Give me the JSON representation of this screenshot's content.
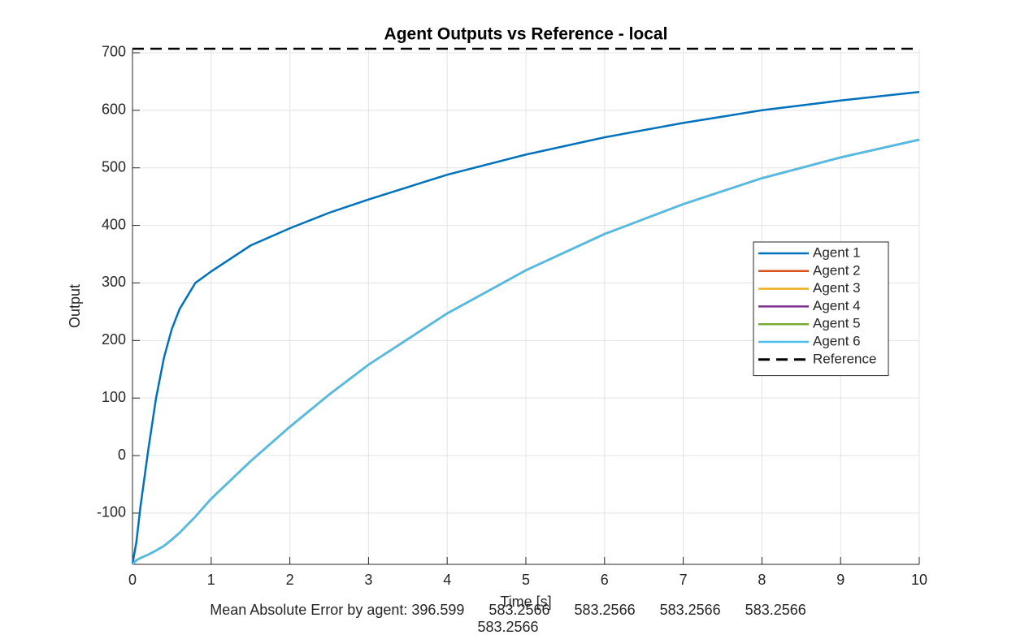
{
  "chart_data": {
    "type": "line",
    "title": "Agent Outputs vs Reference - local",
    "xlabel": "Time [s]",
    "ylabel": "Output",
    "annotation": [
      "Mean Absolute Error by agent: 396.599      583.2566      583.2566      583.2566      583.2566",
      "583.2566"
    ],
    "x": [
      0,
      0.05,
      0.1,
      0.2,
      0.3,
      0.4,
      0.5,
      0.6,
      0.8,
      1,
      1.5,
      2,
      2.5,
      3,
      4,
      5,
      6,
      7,
      8,
      9,
      10
    ],
    "series": [
      {
        "name": "Agent 1",
        "color": "#0072bd",
        "values": [
          -189,
          -150,
          -90,
          10,
          100,
          170,
          220,
          255,
          300,
          320,
          365,
          395,
          422,
          445,
          488,
          523,
          553,
          578,
          600,
          617,
          632
        ]
      },
      {
        "name": "Agent 2",
        "color": "#d95319",
        "values": [
          -189,
          -182,
          -178,
          -172,
          -165,
          -157,
          -146,
          -134,
          -106,
          -75,
          -10,
          50,
          106,
          158,
          247,
          322,
          385,
          437,
          482,
          518,
          549
        ]
      },
      {
        "name": "Agent 3",
        "color": "#edb120",
        "values": [
          -189,
          -182,
          -178,
          -172,
          -165,
          -157,
          -146,
          -134,
          -106,
          -75,
          -10,
          50,
          106,
          158,
          247,
          322,
          385,
          437,
          482,
          518,
          549
        ]
      },
      {
        "name": "Agent 4",
        "color": "#7e2f8e",
        "values": [
          -189,
          -182,
          -178,
          -172,
          -165,
          -157,
          -146,
          -134,
          -106,
          -75,
          -10,
          50,
          106,
          158,
          247,
          322,
          385,
          437,
          482,
          518,
          549
        ]
      },
      {
        "name": "Agent 5",
        "color": "#77ac30",
        "values": [
          -189,
          -182,
          -178,
          -172,
          -165,
          -157,
          -146,
          -134,
          -106,
          -75,
          -10,
          50,
          106,
          158,
          247,
          322,
          385,
          437,
          482,
          518,
          549
        ]
      },
      {
        "name": "Agent 6",
        "color": "#4dbeee",
        "values": [
          -189,
          -182,
          -178,
          -172,
          -165,
          -157,
          -146,
          -134,
          -106,
          -75,
          -10,
          50,
          106,
          158,
          247,
          322,
          385,
          437,
          482,
          518,
          549
        ]
      },
      {
        "name": "Reference",
        "color": "#000000",
        "dashed": true,
        "x": [
          0,
          10
        ],
        "values": [
          707,
          707
        ]
      }
    ],
    "xlim": [
      0,
      10
    ],
    "xticks": [
      0,
      1,
      2,
      3,
      4,
      5,
      6,
      7,
      8,
      9,
      10
    ],
    "ylim": [
      -189,
      707
    ],
    "yticks": [
      -100,
      0,
      100,
      200,
      300,
      400,
      500,
      600,
      700
    ],
    "grid": true,
    "legend": "east"
  }
}
